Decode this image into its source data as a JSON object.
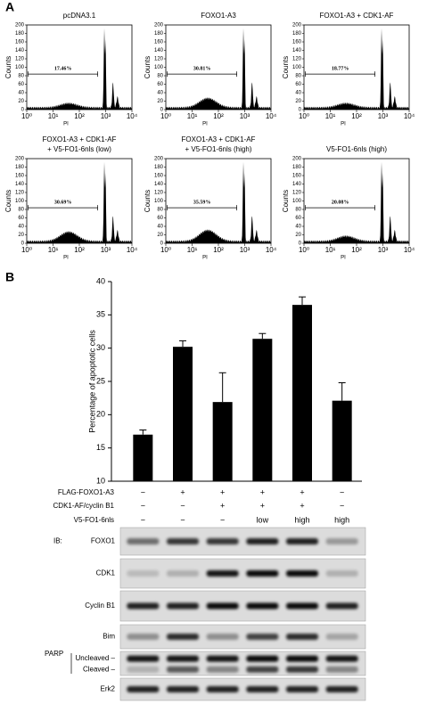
{
  "panel_a": {
    "label": "A",
    "y_axis_label": "Counts",
    "x_axis_label": "PI",
    "yticks": [
      0,
      20,
      40,
      60,
      80,
      100,
      120,
      140,
      160,
      180,
      200
    ],
    "xticks": [
      {
        "value": 0,
        "label": "10⁰"
      },
      {
        "value": 1,
        "label": "10¹"
      },
      {
        "value": 2,
        "label": "10²"
      },
      {
        "value": 3,
        "label": "10³"
      },
      {
        "value": 4,
        "label": "10⁴"
      }
    ],
    "plots": [
      {
        "title": [
          "pcDNA3.1"
        ],
        "gate_label": "17.46%"
      },
      {
        "title": [
          "FOXO1-A3"
        ],
        "gate_label": "30.81%"
      },
      {
        "title": [
          "FOXO1-A3 + CDK1-AF"
        ],
        "gate_label": "18.77%"
      },
      {
        "title": [
          "FOXO1-A3 + CDK1-AF",
          "+ V5-FO1-6nls (low)"
        ],
        "gate_label": "30.69%"
      },
      {
        "title": [
          "FOXO1-A3 + CDK1-AF",
          "+ V5-FO1-6nls (high)"
        ],
        "gate_label": "35.59%"
      },
      {
        "title": [
          "V5-FO1-6nls (high)"
        ],
        "gate_label": "20.08%"
      }
    ]
  },
  "chart_data": {
    "type": "bar",
    "panel_label": "B",
    "y_axis_label": "Percentage of apoptotic cells",
    "categories": [
      null,
      null,
      null,
      null,
      null,
      null
    ],
    "values": [
      17,
      30.2,
      21.9,
      31.4,
      36.5,
      22.1
    ],
    "errors": [
      0.7,
      0.9,
      4.4,
      0.8,
      1.2,
      2.7
    ],
    "color": "#000000",
    "ylim": [
      10,
      40
    ],
    "yticks": [
      10,
      15,
      20,
      25,
      30,
      35,
      40
    ]
  },
  "conditions": {
    "rows": [
      {
        "label": "FLAG-FOXO1-A3",
        "cells": [
          "−",
          "+",
          "+",
          "+",
          "+",
          "−"
        ]
      },
      {
        "label": "CDK1-AF/cyclin B1",
        "cells": [
          "−",
          "−",
          "+",
          "+",
          "+",
          "−"
        ]
      },
      {
        "label": "V5-FO1-6nls",
        "cells": [
          "−",
          "−",
          "−",
          "low",
          "high",
          "high"
        ]
      }
    ]
  },
  "blots": {
    "ib_label": "IB:",
    "rows": [
      {
        "labels": [
          "FOXO1"
        ]
      },
      {
        "labels": [
          "CDK1"
        ]
      },
      {
        "labels": [
          "Cyclin B1"
        ]
      },
      {
        "labels": [
          "Bim"
        ]
      },
      {
        "group": "PARP",
        "labels": [
          "Uncleaved –",
          "Cleaved –"
        ]
      },
      {
        "labels": [
          "Erk2"
        ]
      }
    ]
  }
}
